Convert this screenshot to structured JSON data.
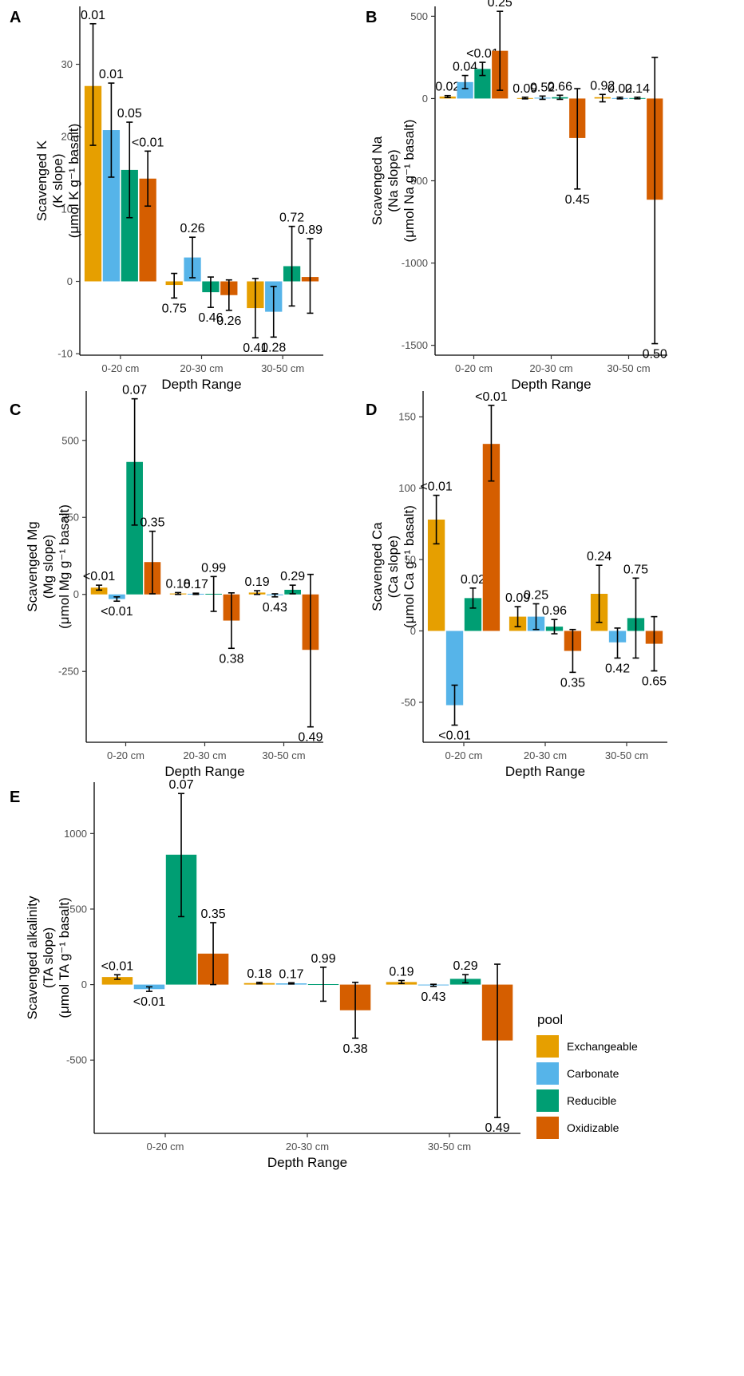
{
  "legend": {
    "title": "pool",
    "items": [
      {
        "name": "Exchangeable",
        "color": "#E69F00"
      },
      {
        "name": "Carbonate",
        "color": "#56B4E9"
      },
      {
        "name": "Reducible",
        "color": "#009E73"
      },
      {
        "name": "Oxidizable",
        "color": "#D55E00"
      }
    ]
  },
  "chart_data": [
    {
      "type": "bar",
      "panel": "A",
      "categories": [
        "0-20 cm",
        "20-30 cm",
        "30-50 cm"
      ],
      "xlabel": "Depth Range",
      "ylabel": [
        "Scavenged K",
        "(K slope)",
        "(μmol K g⁻¹ basalt)"
      ],
      "ylim": [
        -10.2,
        38
      ],
      "yticks": [
        -10,
        0,
        10,
        20,
        30
      ],
      "series": [
        {
          "name": "Exchangeable",
          "values": [
            27,
            -0.5,
            -3.7
          ],
          "err_low": [
            18.8,
            -2.3,
            -7.8
          ],
          "err_high": [
            35.6,
            1.1,
            0.4
          ],
          "labels": [
            "0.01",
            "0.75",
            "0.41"
          ]
        },
        {
          "name": "Carbonate",
          "values": [
            20.9,
            3.3,
            -4.2
          ],
          "err_low": [
            14.4,
            0.5,
            -7.7
          ],
          "err_high": [
            27.4,
            6.1,
            -0.7
          ],
          "labels": [
            "0.01",
            "0.26",
            "0.28"
          ]
        },
        {
          "name": "Reducible",
          "values": [
            15.4,
            -1.5,
            2.1
          ],
          "err_low": [
            8.8,
            -3.6,
            -3.4
          ],
          "err_high": [
            22,
            0.6,
            7.6
          ],
          "labels": [
            "0.05",
            "0.46",
            "0.72"
          ]
        },
        {
          "name": "Oxidizable",
          "values": [
            14.2,
            -1.9,
            0.6
          ],
          "err_low": [
            10.4,
            -4,
            -4.4
          ],
          "err_high": [
            18,
            0.2,
            5.9
          ],
          "labels": [
            "<0.01",
            "0.26",
            "0.89"
          ]
        }
      ]
    },
    {
      "type": "bar",
      "panel": "B",
      "categories": [
        "0-20 cm",
        "20-30 cm",
        "30-50 cm"
      ],
      "xlabel": "Depth Range",
      "ylabel": [
        "Scavenged Na",
        "(Na slope)",
        "(μmol Na g⁻¹ basalt)"
      ],
      "ylim": [
        -1560,
        560
      ],
      "yticks": [
        -1500,
        -1000,
        -500,
        0,
        500
      ],
      "series": [
        {
          "name": "Exchangeable",
          "values": [
            12,
            3,
            8
          ],
          "err_low": [
            6,
            -2,
            -20
          ],
          "err_high": [
            18,
            8,
            25
          ],
          "labels": [
            "0.02",
            "0.09",
            "0.92"
          ]
        },
        {
          "name": "Carbonate",
          "values": [
            100,
            5,
            3
          ],
          "err_low": [
            60,
            -5,
            -2
          ],
          "err_high": [
            140,
            15,
            8
          ],
          "labels": [
            "0.04",
            "0.52",
            "0.02"
          ]
        },
        {
          "name": "Reducible",
          "values": [
            180,
            8,
            3
          ],
          "err_low": [
            140,
            -5,
            -2
          ],
          "err_high": [
            220,
            20,
            8
          ],
          "labels": [
            "<0.01",
            "0.66",
            "0.14"
          ]
        },
        {
          "name": "Oxidizable",
          "values": [
            290,
            -240,
            -615
          ],
          "err_low": [
            50,
            -550,
            -1490
          ],
          "err_high": [
            530,
            60,
            250
          ],
          "labels": [
            "0.25",
            "0.45",
            "0.50"
          ]
        }
      ]
    },
    {
      "type": "bar",
      "panel": "C",
      "categories": [
        "0-20 cm",
        "20-30 cm",
        "30-50 cm"
      ],
      "xlabel": "Depth Range",
      "ylabel": [
        "Scavenged Mg",
        "(Mg slope)",
        "(μmol Mg g⁻¹ basalt)"
      ],
      "ylim": [
        -480,
        660
      ],
      "yticks": [
        -250,
        0,
        250,
        500
      ],
      "series": [
        {
          "name": "Exchangeable",
          "values": [
            22,
            3,
            6
          ],
          "err_low": [
            14,
            0,
            0
          ],
          "err_high": [
            30,
            6,
            12
          ],
          "labels": [
            "<0.01",
            "0.18",
            "0.19"
          ]
        },
        {
          "name": "Carbonate",
          "values": [
            -15,
            2,
            -3
          ],
          "err_low": [
            -22,
            0,
            -8
          ],
          "err_high": [
            -8,
            4,
            2
          ],
          "labels": [
            "<0.01",
            "0.17",
            "0.43"
          ]
        },
        {
          "name": "Reducible",
          "values": [
            430,
            2,
            15
          ],
          "err_low": [
            225,
            -55,
            2
          ],
          "err_high": [
            635,
            58,
            30
          ],
          "labels": [
            "0.07",
            "0.99",
            "0.29"
          ]
        },
        {
          "name": "Oxidizable",
          "values": [
            105,
            -85,
            -180
          ],
          "err_low": [
            2,
            -175,
            -430
          ],
          "err_high": [
            205,
            5,
            65
          ],
          "labels": [
            "0.35",
            "0.38",
            "0.49"
          ]
        }
      ]
    },
    {
      "type": "bar",
      "panel": "D",
      "categories": [
        "0-20 cm",
        "20-30 cm",
        "30-50 cm"
      ],
      "xlabel": "Depth Range",
      "ylabel": [
        "Scavenged Ca",
        "(Ca slope)",
        "(μmol Ca g⁻¹ basalt)"
      ],
      "ylim": [
        -78,
        168
      ],
      "yticks": [
        -50,
        0,
        50,
        100,
        150
      ],
      "series": [
        {
          "name": "Exchangeable",
          "values": [
            78,
            10,
            26
          ],
          "err_low": [
            61,
            3,
            6
          ],
          "err_high": [
            95,
            17,
            46
          ],
          "labels": [
            "<0.01",
            "0.09",
            "0.24"
          ]
        },
        {
          "name": "Carbonate",
          "values": [
            -52,
            10,
            -8
          ],
          "err_low": [
            -66,
            1,
            -19
          ],
          "err_high": [
            -38,
            19,
            2
          ],
          "labels": [
            "<0.01",
            "0.25",
            "0.42"
          ]
        },
        {
          "name": "Reducible",
          "values": [
            23,
            3,
            9
          ],
          "err_low": [
            16,
            -2,
            -19
          ],
          "err_high": [
            30,
            8,
            37
          ],
          "labels": [
            "0.02",
            "0.96",
            "0.75"
          ]
        },
        {
          "name": "Oxidizable",
          "values": [
            131,
            -14,
            -9
          ],
          "err_low": [
            105,
            -29,
            -28
          ],
          "err_high": [
            158,
            1,
            10
          ],
          "labels": [
            "<0.01",
            "0.35",
            "0.65"
          ]
        }
      ]
    },
    {
      "type": "bar",
      "panel": "E",
      "categories": [
        "0-20 cm",
        "20-30 cm",
        "30-50 cm"
      ],
      "xlabel": "Depth Range",
      "ylabel": [
        "Scavenged alkalinity",
        "(TA slope)",
        "(μmol TA g⁻¹ basalt)"
      ],
      "ylim": [
        -985,
        1340
      ],
      "yticks": [
        -500,
        0,
        500,
        1000
      ],
      "series": [
        {
          "name": "Exchangeable",
          "values": [
            50,
            10,
            17
          ],
          "err_low": [
            35,
            5,
            7
          ],
          "err_high": [
            65,
            15,
            27
          ],
          "labels": [
            "<0.01",
            "0.18",
            "0.19"
          ]
        },
        {
          "name": "Carbonate",
          "values": [
            -30,
            8,
            -5
          ],
          "err_low": [
            -45,
            4,
            -12
          ],
          "err_high": [
            -15,
            12,
            2
          ],
          "labels": [
            "<0.01",
            "0.17",
            "0.43"
          ]
        },
        {
          "name": "Reducible",
          "values": [
            860,
            3,
            38
          ],
          "err_low": [
            450,
            -110,
            12
          ],
          "err_high": [
            1265,
            115,
            66
          ],
          "labels": [
            "0.07",
            "0.99",
            "0.29"
          ]
        },
        {
          "name": "Oxidizable",
          "values": [
            205,
            -170,
            -370
          ],
          "err_low": [
            0,
            -355,
            -880
          ],
          "err_high": [
            410,
            15,
            135
          ],
          "labels": [
            "0.35",
            "0.38",
            "0.49"
          ]
        }
      ]
    }
  ]
}
